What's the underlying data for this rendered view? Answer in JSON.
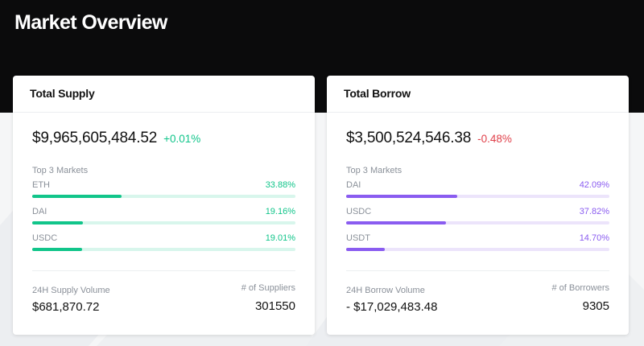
{
  "page": {
    "title": "Market Overview"
  },
  "colors": {
    "supply_accent": "#11c58a",
    "supply_track": "#d8f6ec",
    "borrow_accent": "#8a5cf0",
    "borrow_track": "#ece4fb",
    "negative": "#e0404a"
  },
  "supply": {
    "header": "Total Supply",
    "total": "$9,965,605,484.52",
    "change": "+0.01%",
    "top3_label": "Top 3 Markets",
    "markets": [
      {
        "name": "ETH",
        "pct": "33.88%",
        "fill": 0.3388
      },
      {
        "name": "DAI",
        "pct": "19.16%",
        "fill": 0.1916
      },
      {
        "name": "USDC",
        "pct": "19.01%",
        "fill": 0.1901
      }
    ],
    "volume_label": "24H Supply Volume",
    "volume_value": "$681,870.72",
    "count_label": "# of Suppliers",
    "count_value": "301550"
  },
  "borrow": {
    "header": "Total Borrow",
    "total": "$3,500,524,546.38",
    "change": "-0.48%",
    "top3_label": "Top 3 Markets",
    "markets": [
      {
        "name": "DAI",
        "pct": "42.09%",
        "fill": 0.4209
      },
      {
        "name": "USDC",
        "pct": "37.82%",
        "fill": 0.3782
      },
      {
        "name": "USDT",
        "pct": "14.70%",
        "fill": 0.147
      }
    ],
    "volume_label": "24H Borrow Volume",
    "volume_value": "- $17,029,483.48",
    "count_label": "# of Borrowers",
    "count_value": "9305"
  }
}
